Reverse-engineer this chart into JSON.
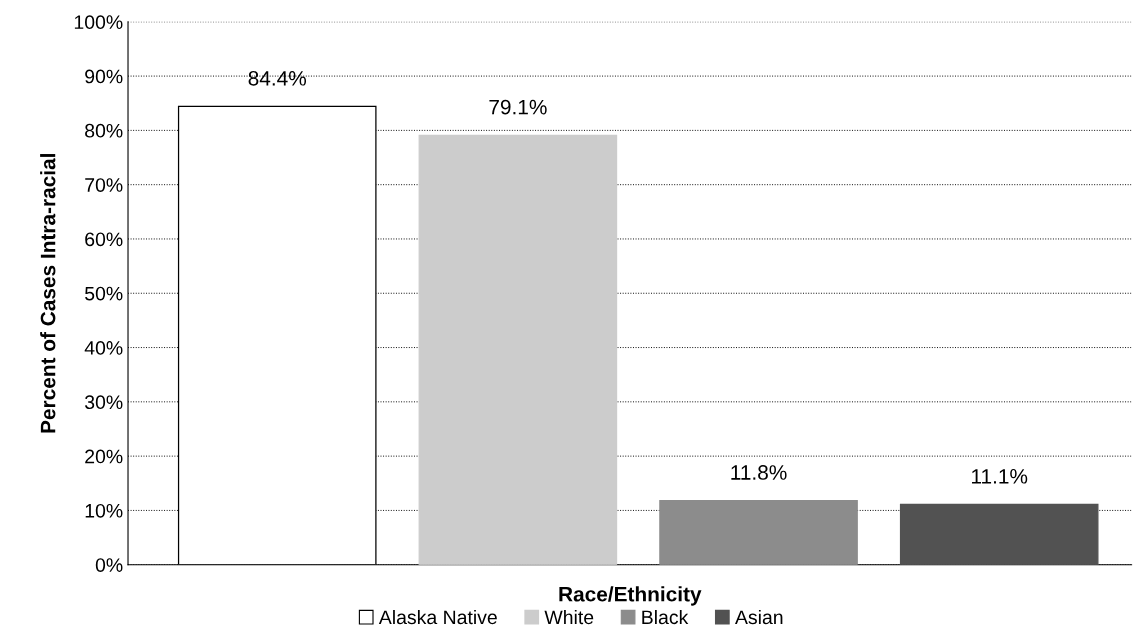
{
  "chart_data": {
    "type": "bar",
    "xlabel": "Race/Ethnicity",
    "ylabel": "Percent of Cases Intra-racial",
    "categories": [
      null,
      null,
      null,
      null
    ],
    "series": [
      {
        "name": "Alaska Native",
        "color": "#ffffff",
        "values": [
          84.4,
          null,
          null,
          null
        ],
        "value_labels": [
          "84.4%",
          null,
          null,
          null
        ]
      },
      {
        "name": "White",
        "color": "#cccccc",
        "values": [
          null,
          79.1,
          null,
          null
        ],
        "value_labels": [
          null,
          "79.1%",
          null,
          null
        ]
      },
      {
        "name": "Black",
        "color": "#8c8c8c",
        "values": [
          null,
          null,
          11.8,
          null
        ],
        "value_labels": [
          null,
          null,
          "11.8%",
          null
        ]
      },
      {
        "name": "Asian",
        "color": "#525252",
        "values": [
          null,
          null,
          null,
          11.1
        ],
        "value_labels": [
          null,
          null,
          null,
          "11.1%"
        ]
      }
    ],
    "ylim": [
      0,
      100
    ],
    "yticks": [
      {
        "value": 0,
        "label": "0%"
      },
      {
        "value": 10,
        "label": "10%"
      },
      {
        "value": 20,
        "label": "20%"
      },
      {
        "value": 30,
        "label": "30%"
      },
      {
        "value": 40,
        "label": "40%"
      },
      {
        "value": 50,
        "label": "50%"
      },
      {
        "value": 60,
        "label": "60%"
      },
      {
        "value": 70,
        "label": "70%"
      },
      {
        "value": 80,
        "label": "80%"
      },
      {
        "value": 90,
        "label": "90%"
      },
      {
        "value": 100,
        "label": "100%"
      }
    ],
    "grid": "y",
    "legend": "bottom",
    "line_style": "dotted"
  }
}
